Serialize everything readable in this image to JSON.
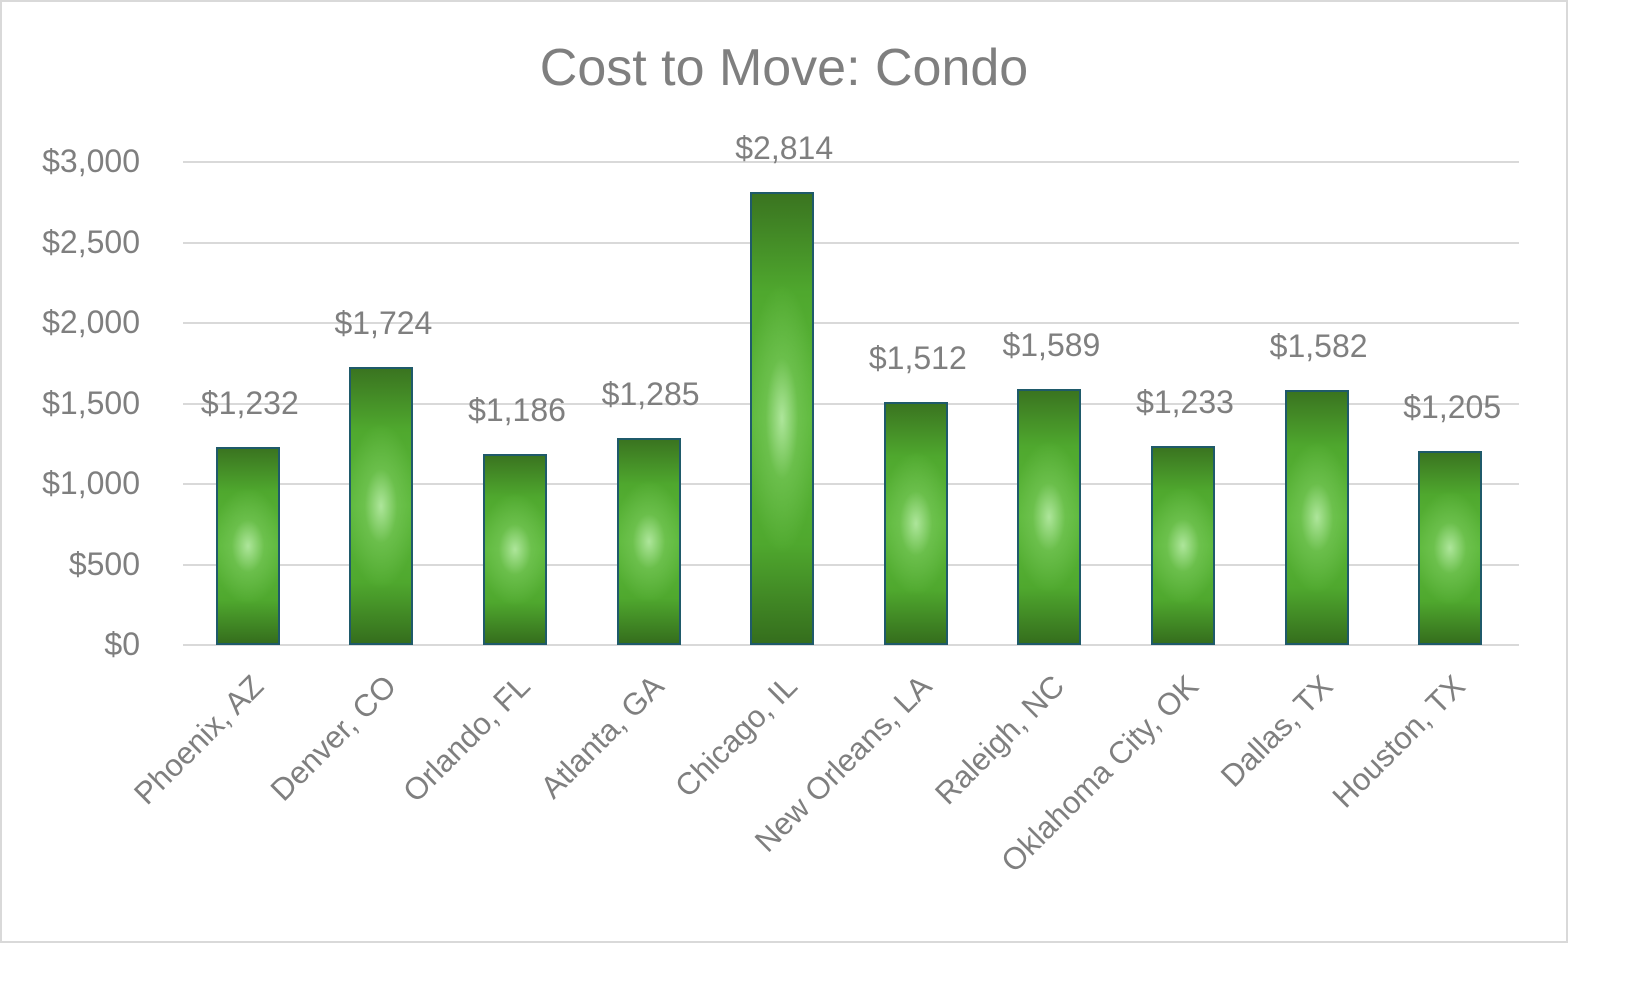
{
  "chart_data": {
    "type": "bar",
    "title": "Cost to Move: Condo",
    "xlabel": "",
    "ylabel": "",
    "categories": [
      "Phoenix, AZ",
      "Denver, CO",
      "Orlando, FL",
      "Atlanta, GA",
      "Chicago, IL",
      "New Orleans, LA",
      "Raleigh, NC",
      "Oklahoma City, OK",
      "Dallas, TX",
      "Houston, TX"
    ],
    "values": [
      1232,
      1724,
      1186,
      1285,
      2814,
      1512,
      1589,
      1233,
      1582,
      1205
    ],
    "data_labels": [
      "$1,232",
      "$1,724",
      "$1,186",
      "$1,285",
      "$2,814",
      "$1,512",
      "$1,589",
      "$1,233",
      "$1,582",
      "$1,205"
    ],
    "ylim": [
      0,
      3000
    ],
    "yticks": [
      0,
      500,
      1000,
      1500,
      2000,
      2500,
      3000
    ],
    "ytick_labels": [
      "$0",
      "$500",
      "$1,000",
      "$1,500",
      "$2,000",
      "$2,500",
      "$3,000"
    ],
    "grid": true,
    "legend": null,
    "colors": {
      "bar_fill": "#4fa82e",
      "bar_highlight": "#b2e8a0",
      "bar_border": "#1f5a6a",
      "text": "#7f7f7f",
      "gridline": "#d9d9d9"
    }
  }
}
